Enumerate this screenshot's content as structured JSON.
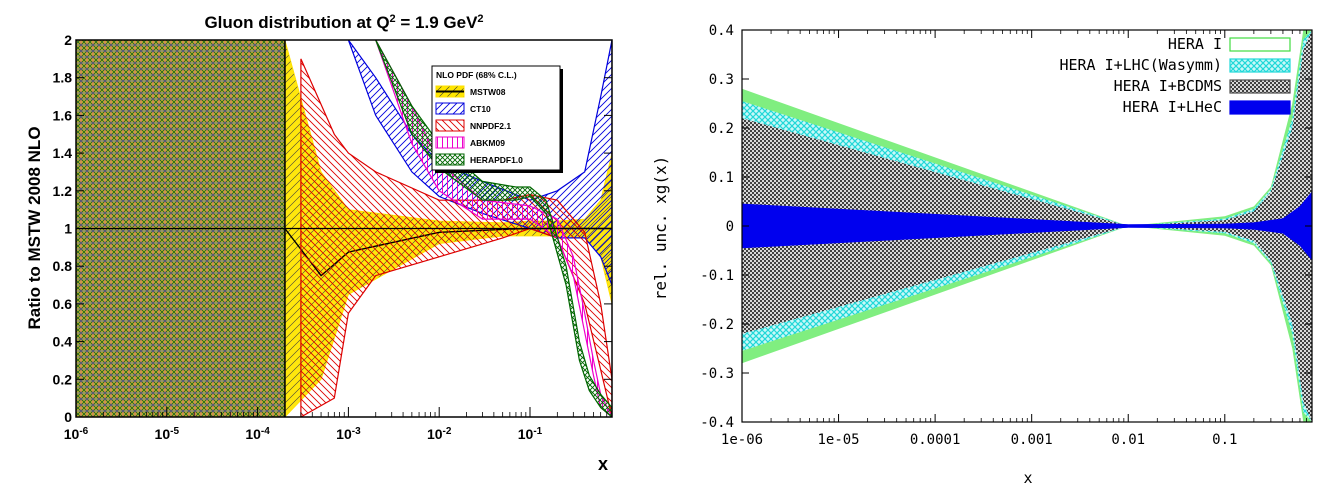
{
  "chart_data": [
    {
      "type": "area",
      "title_main": "Gluon distribution at Q",
      "title_sup1": "2",
      "title_mid": " = 1.9 GeV",
      "title_sup2": "2",
      "xlabel": "x",
      "ylabel": "Ratio to MSTW 2008 NLO",
      "xscale": "log",
      "xlim": [
        1e-06,
        0.8
      ],
      "ylim": [
        0,
        2
      ],
      "x_ticks": [
        {
          "value": 1e-06,
          "base": "10",
          "exp": "-6"
        },
        {
          "value": 1e-05,
          "base": "10",
          "exp": "-5"
        },
        {
          "value": 0.0001,
          "base": "10",
          "exp": "-4"
        },
        {
          "value": 0.001,
          "base": "10",
          "exp": "-3"
        },
        {
          "value": 0.01,
          "base": "10",
          "exp": "-2"
        },
        {
          "value": 0.1,
          "base": "10",
          "exp": "-1"
        }
      ],
      "y_ticks": [
        {
          "value": 0,
          "label": "0"
        },
        {
          "value": 0.2,
          "label": "0.2"
        },
        {
          "value": 0.4,
          "label": "0.4"
        },
        {
          "value": 0.6,
          "label": "0.6"
        },
        {
          "value": 0.8,
          "label": "0.8"
        },
        {
          "value": 1,
          "label": "1"
        },
        {
          "value": 1.2,
          "label": "1.2"
        },
        {
          "value": 1.4,
          "label": "1.4"
        },
        {
          "value": 1.6,
          "label": "1.6"
        },
        {
          "value": 1.8,
          "label": "1.8"
        },
        {
          "value": 2,
          "label": "2"
        }
      ],
      "legend_title": "NLO PDF (68% C.L.)",
      "legend_position": "top-right",
      "series": [
        {
          "name": "MSTW08",
          "color": "#ffe000",
          "edge": "#000000",
          "x": [
            0.0002,
            0.0005,
            0.001,
            0.01,
            0.05,
            0.1,
            0.2,
            0.4,
            0.6,
            0.8
          ],
          "upper": [
            2.0,
            1.3,
            1.1,
            1.04,
            1.03,
            1.04,
            1.04,
            1.05,
            1.15,
            1.4
          ],
          "lower": [
            0.0,
            0.2,
            0.65,
            0.92,
            0.96,
            0.96,
            0.96,
            0.95,
            0.85,
            0.6
          ]
        },
        {
          "name": "CT10",
          "color": "#0000dd",
          "x": [
            0.001,
            0.002,
            0.005,
            0.01,
            0.03,
            0.1,
            0.2,
            0.4,
            0.6,
            0.8
          ],
          "upper": [
            2.0,
            1.8,
            1.5,
            1.35,
            1.25,
            1.15,
            1.2,
            1.3,
            1.7,
            2.0
          ],
          "lower": [
            2.0,
            1.6,
            1.3,
            1.17,
            1.08,
            1.0,
            0.95,
            0.95,
            0.85,
            0.7
          ]
        },
        {
          "name": "NNPDF2.1",
          "color": "#dd0000",
          "x": [
            0.0003,
            0.0007,
            0.001,
            0.002,
            0.01,
            0.05,
            0.1,
            0.2,
            0.4,
            0.6,
            0.8
          ],
          "upper": [
            1.9,
            1.5,
            1.4,
            1.3,
            1.15,
            1.15,
            1.18,
            1.15,
            0.98,
            0.6,
            0.2
          ],
          "lower": [
            0.0,
            0.1,
            0.55,
            0.75,
            0.85,
            0.95,
            1.0,
            0.95,
            0.6,
            0.25,
            0.0
          ]
        },
        {
          "name": "ABKM09",
          "color": "#ee00cc",
          "x": [
            0.002,
            0.005,
            0.01,
            0.03,
            0.1,
            0.2,
            0.3,
            0.4,
            0.5,
            0.6,
            0.8
          ],
          "upper": [
            2.0,
            1.65,
            1.35,
            1.15,
            1.12,
            1.05,
            0.85,
            0.55,
            0.3,
            0.12,
            0.0
          ],
          "lower": [
            2.0,
            1.45,
            1.2,
            1.05,
            1.05,
            0.95,
            0.75,
            0.45,
            0.22,
            0.05,
            0.0
          ]
        },
        {
          "name": "HERAPDF1.0",
          "color": "#006600",
          "x": [
            0.002,
            0.005,
            0.01,
            0.03,
            0.07,
            0.1,
            0.15,
            0.25,
            0.35,
            0.45,
            0.6,
            0.8
          ],
          "upper": [
            2.0,
            1.65,
            1.45,
            1.25,
            1.22,
            1.22,
            1.15,
            0.8,
            0.4,
            0.22,
            0.12,
            0.05
          ],
          "lower": [
            2.0,
            1.5,
            1.32,
            1.15,
            1.15,
            1.17,
            1.08,
            0.7,
            0.3,
            0.14,
            0.05,
            0.0
          ]
        }
      ]
    },
    {
      "type": "area",
      "title": "",
      "xlabel": "x",
      "ylabel": "rel. unc. xg(x)",
      "xscale": "log",
      "xlim": [
        1e-06,
        0.8
      ],
      "ylim": [
        -0.4,
        0.4
      ],
      "x_ticks": [
        {
          "value": 1e-06,
          "label": "1e-06"
        },
        {
          "value": 1e-05,
          "label": "1e-05"
        },
        {
          "value": 0.0001,
          "label": "0.0001"
        },
        {
          "value": 0.001,
          "label": "0.001"
        },
        {
          "value": 0.01,
          "label": "0.01"
        },
        {
          "value": 0.1,
          "label": "0.1"
        }
      ],
      "y_ticks": [
        {
          "value": -0.4,
          "label": "-0.4"
        },
        {
          "value": -0.3,
          "label": "-0.3"
        },
        {
          "value": -0.2,
          "label": "-0.2"
        },
        {
          "value": -0.1,
          "label": "-0.1"
        },
        {
          "value": 0,
          "label": "0"
        },
        {
          "value": 0.1,
          "label": "0.1"
        },
        {
          "value": 0.2,
          "label": "0.2"
        },
        {
          "value": 0.3,
          "label": "0.3"
        },
        {
          "value": 0.4,
          "label": "0.4"
        }
      ],
      "legend_position": "top-right",
      "series": [
        {
          "name": "HERA I",
          "color": "#80ee80",
          "x": [
            1e-06,
            0.01,
            0.1,
            0.2,
            0.3,
            0.5,
            0.65,
            0.8
          ],
          "upper": [
            0.28,
            0.0,
            0.02,
            0.04,
            0.08,
            0.25,
            0.4,
            0.4
          ],
          "lower": [
            -0.28,
            0.0,
            -0.02,
            -0.04,
            -0.08,
            -0.25,
            -0.4,
            -0.4
          ]
        },
        {
          "name": "HERA I+LHC(Wasymm)",
          "color": "#30e8e8",
          "x": [
            1e-06,
            0.01,
            0.1,
            0.2,
            0.3,
            0.5,
            0.65,
            0.8
          ],
          "upper": [
            0.255,
            0.0,
            0.015,
            0.035,
            0.075,
            0.22,
            0.38,
            0.4
          ],
          "lower": [
            -0.255,
            0.0,
            -0.015,
            -0.035,
            -0.075,
            -0.22,
            -0.38,
            -0.4
          ]
        },
        {
          "name": "HERA I+BCDMS",
          "color": "#505050",
          "x": [
            1e-06,
            0.01,
            0.1,
            0.2,
            0.3,
            0.5,
            0.65,
            0.8
          ],
          "upper": [
            0.22,
            0.0,
            0.012,
            0.03,
            0.07,
            0.2,
            0.36,
            0.4
          ],
          "lower": [
            -0.22,
            0.0,
            -0.012,
            -0.03,
            -0.07,
            -0.2,
            -0.36,
            -0.4
          ]
        },
        {
          "name": "HERA I+LHeC",
          "color": "#0000ee",
          "x": [
            1e-06,
            0.01,
            0.1,
            0.2,
            0.4,
            0.6,
            0.8
          ],
          "upper": [
            0.045,
            0.003,
            0.004,
            0.007,
            0.015,
            0.04,
            0.07
          ],
          "lower": [
            -0.045,
            -0.003,
            -0.004,
            -0.007,
            -0.015,
            -0.04,
            -0.07
          ]
        }
      ]
    }
  ]
}
